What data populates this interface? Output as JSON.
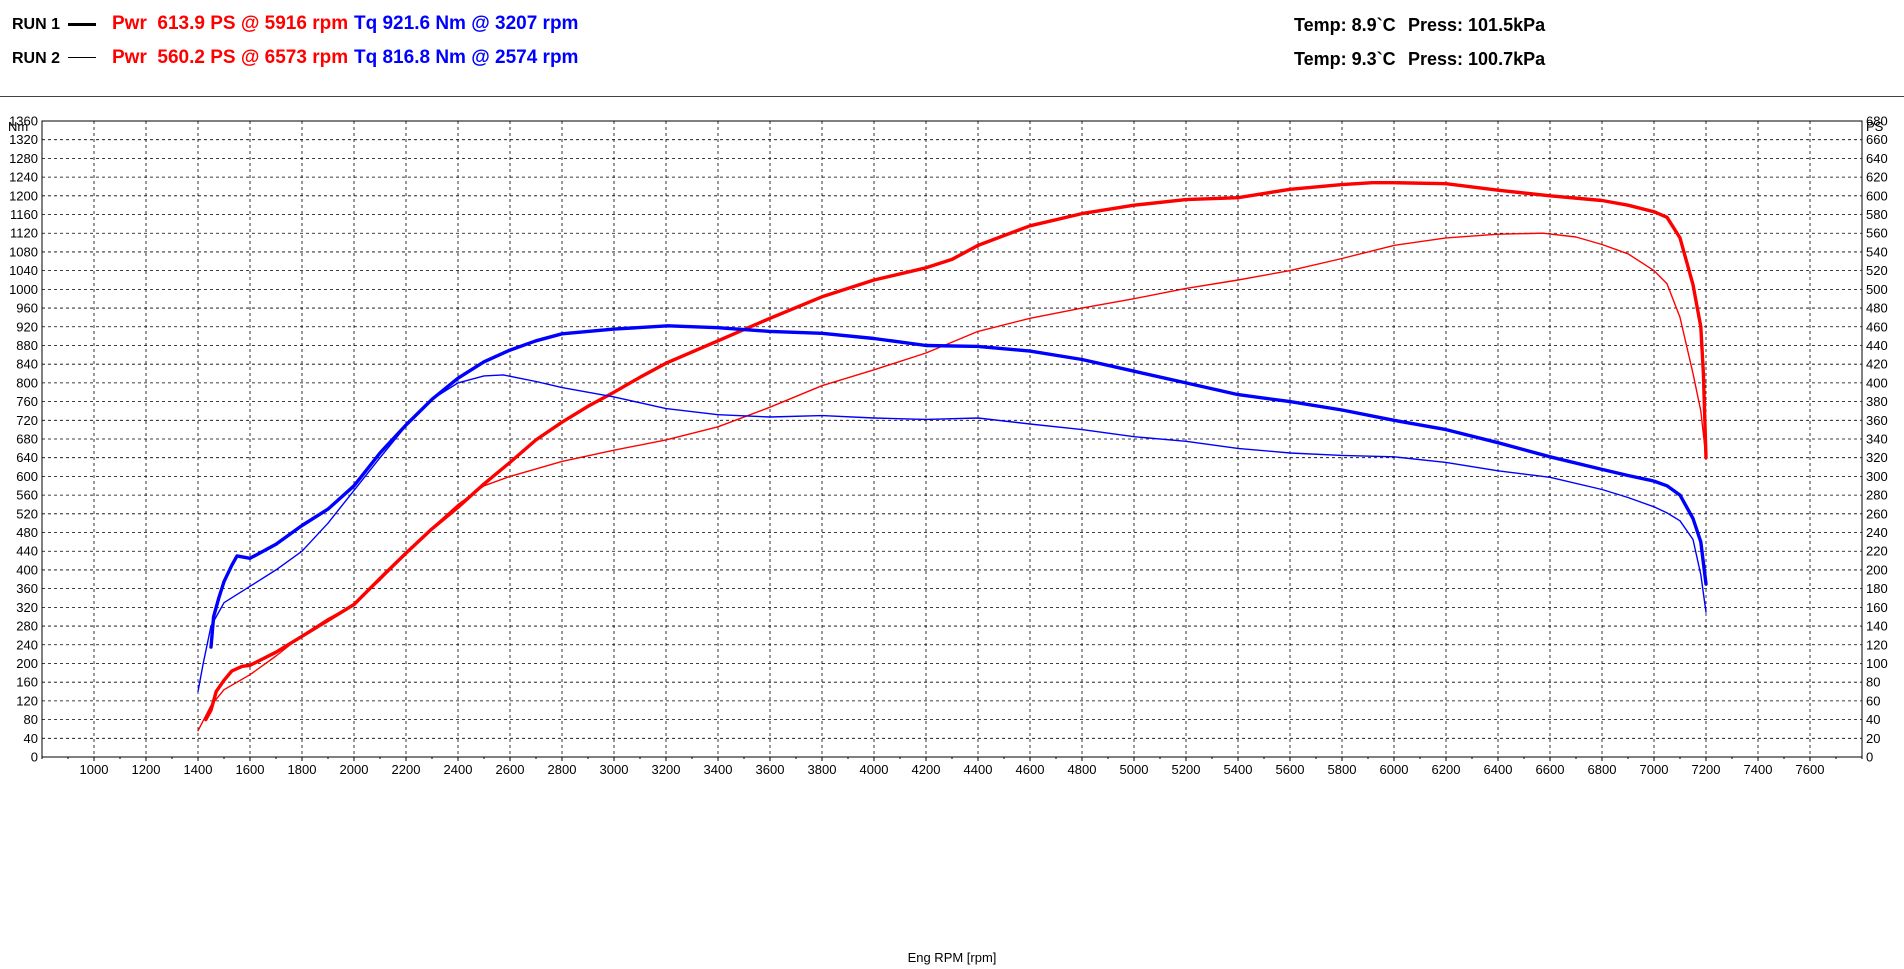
{
  "legend": {
    "runs": [
      {
        "label": "RUN 1",
        "power": "Pwr  613.9 PS @ 5916 rpm",
        "torque": "Tq 921.6 Nm @ 3207 rpm",
        "temp": "Temp: 8.9`C",
        "press": "Press: 101.5kPa"
      },
      {
        "label": "RUN 2",
        "power": "Pwr  560.2 PS @ 6573 rpm",
        "torque": "Tq 816.8 Nm @ 2574 rpm",
        "temp": "Temp: 9.3`C",
        "press": "Press: 100.7kPa"
      }
    ]
  },
  "colors": {
    "power": "#ff0000",
    "torque": "#0000ff",
    "grid": "#000000"
  },
  "chart_data": {
    "type": "line",
    "xlabel": "Eng RPM [rpm]",
    "ylabel_left": "Nm",
    "ylabel_right": "PS",
    "xlim": [
      800,
      7800
    ],
    "x_ticks": [
      1000,
      1200,
      1400,
      1600,
      1800,
      2000,
      2200,
      2400,
      2600,
      2800,
      3000,
      3200,
      3400,
      3600,
      3800,
      4000,
      4200,
      4400,
      4600,
      4800,
      5000,
      5200,
      5400,
      5600,
      5800,
      6000,
      6200,
      6400,
      6600,
      6800,
      7000,
      7200,
      7400,
      7600
    ],
    "ylim_left": [
      0,
      1360
    ],
    "ylim_right": [
      0,
      680
    ],
    "y_ticks_left": [
      0,
      40,
      80,
      120,
      160,
      200,
      240,
      280,
      320,
      360,
      400,
      440,
      480,
      520,
      560,
      600,
      640,
      680,
      720,
      760,
      800,
      840,
      880,
      920,
      960,
      1000,
      1040,
      1080,
      1120,
      1160,
      1200,
      1240,
      1280,
      1320,
      1360
    ],
    "y_ticks_right": [
      0,
      20,
      40,
      60,
      80,
      100,
      120,
      140,
      160,
      180,
      200,
      220,
      240,
      260,
      280,
      300,
      320,
      340,
      360,
      380,
      400,
      420,
      440,
      460,
      480,
      500,
      520,
      540,
      560,
      580,
      600,
      620,
      640,
      660,
      680
    ],
    "grid": true,
    "series": [
      {
        "name": "RUN 1 Pwr",
        "run": 1,
        "quantity": "power",
        "axis": "right",
        "color": "#ff0000",
        "bold": true,
        "points": [
          [
            1430,
            40
          ],
          [
            1450,
            50
          ],
          [
            1470,
            70
          ],
          [
            1500,
            82
          ],
          [
            1530,
            92
          ],
          [
            1570,
            97
          ],
          [
            1600,
            98
          ],
          [
            1700,
            112
          ],
          [
            1800,
            129
          ],
          [
            1900,
            146
          ],
          [
            2000,
            163
          ],
          [
            2100,
            191
          ],
          [
            2200,
            218
          ],
          [
            2300,
            244
          ],
          [
            2400,
            267
          ],
          [
            2500,
            292
          ],
          [
            2600,
            315
          ],
          [
            2700,
            339
          ],
          [
            2800,
            358
          ],
          [
            2900,
            375
          ],
          [
            3000,
            390
          ],
          [
            3100,
            406
          ],
          [
            3200,
            421
          ],
          [
            3400,
            445
          ],
          [
            3600,
            469
          ],
          [
            3800,
            492
          ],
          [
            4000,
            510
          ],
          [
            4200,
            523
          ],
          [
            4300,
            532
          ],
          [
            4400,
            547
          ],
          [
            4600,
            568
          ],
          [
            4800,
            581
          ],
          [
            5000,
            590
          ],
          [
            5200,
            596
          ],
          [
            5400,
            598
          ],
          [
            5600,
            607
          ],
          [
            5800,
            612
          ],
          [
            5916,
            614
          ],
          [
            6000,
            614
          ],
          [
            6200,
            613
          ],
          [
            6400,
            606
          ],
          [
            6600,
            600
          ],
          [
            6800,
            595
          ],
          [
            6900,
            590
          ],
          [
            7000,
            583
          ],
          [
            7050,
            577
          ],
          [
            7100,
            555
          ],
          [
            7150,
            505
          ],
          [
            7180,
            460
          ],
          [
            7190,
            410
          ],
          [
            7200,
            320
          ]
        ]
      },
      {
        "name": "RUN 2 Pwr",
        "run": 2,
        "quantity": "power",
        "axis": "right",
        "color": "#ff0000",
        "bold": false,
        "points": [
          [
            1400,
            28
          ],
          [
            1450,
            55
          ],
          [
            1500,
            72
          ],
          [
            1600,
            88
          ],
          [
            1700,
            108
          ],
          [
            1800,
            130
          ],
          [
            1900,
            148
          ],
          [
            2000,
            163
          ],
          [
            2100,
            189
          ],
          [
            2200,
            217
          ],
          [
            2300,
            245
          ],
          [
            2400,
            270
          ],
          [
            2500,
            290
          ],
          [
            2600,
            300
          ],
          [
            2700,
            308
          ],
          [
            2800,
            316
          ],
          [
            3000,
            328
          ],
          [
            3200,
            339
          ],
          [
            3400,
            353
          ],
          [
            3600,
            374
          ],
          [
            3800,
            397
          ],
          [
            4000,
            414
          ],
          [
            4200,
            432
          ],
          [
            4400,
            455
          ],
          [
            4600,
            469
          ],
          [
            4800,
            480
          ],
          [
            5000,
            490
          ],
          [
            5200,
            501
          ],
          [
            5400,
            510
          ],
          [
            5600,
            520
          ],
          [
            5800,
            533
          ],
          [
            6000,
            547
          ],
          [
            6200,
            555
          ],
          [
            6400,
            559
          ],
          [
            6573,
            560
          ],
          [
            6700,
            556
          ],
          [
            6800,
            548
          ],
          [
            6900,
            538
          ],
          [
            7000,
            520
          ],
          [
            7050,
            506
          ],
          [
            7100,
            470
          ],
          [
            7150,
            410
          ],
          [
            7180,
            370
          ],
          [
            7200,
            320
          ]
        ]
      },
      {
        "name": "RUN 1 Tq",
        "run": 1,
        "quantity": "torque",
        "axis": "left",
        "color": "#0000ff",
        "bold": true,
        "points": [
          [
            1450,
            235
          ],
          [
            1460,
            300
          ],
          [
            1480,
            340
          ],
          [
            1500,
            375
          ],
          [
            1530,
            410
          ],
          [
            1550,
            430
          ],
          [
            1600,
            425
          ],
          [
            1700,
            455
          ],
          [
            1800,
            495
          ],
          [
            1900,
            530
          ],
          [
            2000,
            580
          ],
          [
            2100,
            650
          ],
          [
            2200,
            710
          ],
          [
            2300,
            765
          ],
          [
            2400,
            810
          ],
          [
            2500,
            845
          ],
          [
            2600,
            870
          ],
          [
            2700,
            890
          ],
          [
            2800,
            905
          ],
          [
            3000,
            915
          ],
          [
            3207,
            922
          ],
          [
            3400,
            918
          ],
          [
            3600,
            910
          ],
          [
            3800,
            906
          ],
          [
            4000,
            895
          ],
          [
            4200,
            880
          ],
          [
            4400,
            878
          ],
          [
            4600,
            868
          ],
          [
            4800,
            850
          ],
          [
            5000,
            825
          ],
          [
            5200,
            800
          ],
          [
            5400,
            775
          ],
          [
            5600,
            760
          ],
          [
            5800,
            742
          ],
          [
            6000,
            720
          ],
          [
            6200,
            700
          ],
          [
            6400,
            672
          ],
          [
            6600,
            642
          ],
          [
            6800,
            615
          ],
          [
            6900,
            602
          ],
          [
            7000,
            590
          ],
          [
            7050,
            580
          ],
          [
            7100,
            560
          ],
          [
            7150,
            510
          ],
          [
            7180,
            460
          ],
          [
            7200,
            370
          ]
        ]
      },
      {
        "name": "RUN 2 Tq",
        "run": 2,
        "quantity": "torque",
        "axis": "left",
        "color": "#0000ff",
        "bold": false,
        "points": [
          [
            1400,
            140
          ],
          [
            1420,
            200
          ],
          [
            1450,
            280
          ],
          [
            1500,
            330
          ],
          [
            1600,
            365
          ],
          [
            1700,
            400
          ],
          [
            1800,
            440
          ],
          [
            1900,
            500
          ],
          [
            2000,
            570
          ],
          [
            2100,
            640
          ],
          [
            2200,
            708
          ],
          [
            2300,
            765
          ],
          [
            2400,
            800
          ],
          [
            2500,
            815
          ],
          [
            2574,
            817
          ],
          [
            2700,
            803
          ],
          [
            2800,
            790
          ],
          [
            3000,
            770
          ],
          [
            3200,
            745
          ],
          [
            3400,
            732
          ],
          [
            3600,
            727
          ],
          [
            3800,
            730
          ],
          [
            4000,
            725
          ],
          [
            4200,
            722
          ],
          [
            4400,
            725
          ],
          [
            4600,
            712
          ],
          [
            4800,
            700
          ],
          [
            5000,
            685
          ],
          [
            5200,
            675
          ],
          [
            5400,
            660
          ],
          [
            5600,
            650
          ],
          [
            5800,
            645
          ],
          [
            6000,
            642
          ],
          [
            6200,
            630
          ],
          [
            6400,
            612
          ],
          [
            6600,
            598
          ],
          [
            6800,
            572
          ],
          [
            6900,
            555
          ],
          [
            7000,
            535
          ],
          [
            7050,
            522
          ],
          [
            7100,
            505
          ],
          [
            7150,
            465
          ],
          [
            7180,
            390
          ],
          [
            7200,
            310
          ]
        ]
      }
    ]
  }
}
